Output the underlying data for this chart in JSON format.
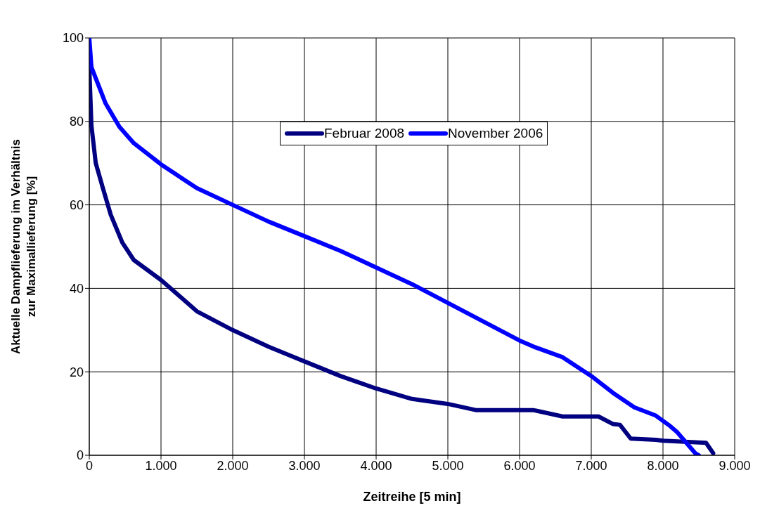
{
  "chart_data": {
    "type": "line",
    "xlabel": "Zeitreihe [5 min]",
    "ylabel": "Aktuelle Dampflieferung im Verhältnis zur Maximallieferung [%]",
    "xlim": [
      0,
      9000
    ],
    "xticks": [
      0,
      {
        "value": 1000,
        "label": "1.000"
      },
      {
        "value": 2000,
        "label": "2.000"
      },
      {
        "value": 3000,
        "label": "3.000"
      },
      {
        "value": 4000,
        "label": "4.000"
      },
      {
        "value": 5000,
        "label": "5.000"
      },
      {
        "value": 6000,
        "label": "6.000"
      },
      {
        "value": 7000,
        "label": "7.000"
      },
      {
        "value": 8000,
        "label": "8.000"
      },
      {
        "value": 9000,
        "label": "9.000"
      }
    ],
    "ylim": [
      0,
      100
    ],
    "yticks": [
      0,
      20,
      40,
      60,
      80,
      100
    ],
    "grid": true,
    "legend": "top",
    "marker": "none",
    "line_style": "solid",
    "series": [
      {
        "name": "Februar 2008",
        "color": "#000080",
        "x": [
          0,
          30,
          90,
          190,
          300,
          460,
          620,
          1000,
          1500,
          2000,
          2500,
          3000,
          3500,
          4000,
          4500,
          5000,
          5400,
          6200,
          6600,
          7100,
          7300,
          7400,
          7550,
          7900,
          8000,
          8600,
          8700
        ],
        "values": [
          93,
          79,
          70,
          64,
          57.6,
          51,
          46.8,
          42,
          34.5,
          30,
          26,
          22.5,
          19,
          16,
          13.5,
          12.3,
          10.8,
          10.8,
          9.3,
          9.3,
          7.5,
          7.3,
          4,
          3.7,
          3.5,
          3,
          0.5
        ]
      },
      {
        "name": "November 2006",
        "color": "#0000ff",
        "x": [
          0,
          30,
          225,
          420,
          620,
          1000,
          1500,
          2000,
          2500,
          3000,
          3500,
          4000,
          4500,
          5000,
          5500,
          6000,
          6200,
          6600,
          7000,
          7300,
          7600,
          7900,
          8100,
          8200,
          8300,
          8450,
          8500
        ],
        "values": [
          100,
          93,
          84.4,
          78.7,
          74.8,
          69.7,
          64,
          60,
          56,
          52.5,
          49,
          45,
          41,
          36.5,
          32,
          27.5,
          26,
          23.5,
          19,
          15,
          11.5,
          9.5,
          7,
          5.5,
          3.5,
          0.5,
          0
        ]
      }
    ]
  }
}
